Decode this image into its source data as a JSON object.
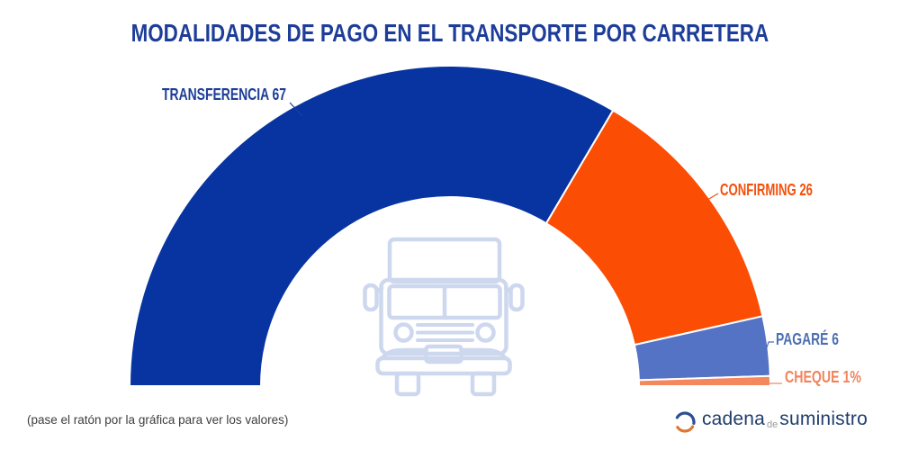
{
  "title": "MODALIDADES DE PAGO EN EL TRANSPORTE POR CARRETERA",
  "footer": {
    "hint": "(pase el ratón por la gráfica para ver los valores)"
  },
  "logo": {
    "word1": "cadena",
    "word2": "de",
    "word3": "suministro",
    "icon": "cadena-circular-arrows-icon",
    "icon_blue": "#2d4e92",
    "icon_orange": "#dd7731"
  },
  "colors": {
    "title": "#1d3d99",
    "background": "#ffffff",
    "truck_icon": "#cdd7ee",
    "slice_border": "#ffffff"
  },
  "chart_data": {
    "type": "pie",
    "subtype": "half-donut",
    "title": "MODALIDADES DE PAGO EN EL TRANSPORTE POR CARRETERA",
    "unit": "%",
    "start_angle_deg": 180,
    "end_angle_deg": 0,
    "inner_radius_ratio": 0.59,
    "legend": "none",
    "center_icon": "truck-front-icon",
    "categories": [
      "TRANSFERENCIA",
      "CONFIRMING",
      "PAGARÉ",
      "CHEQUE"
    ],
    "values": [
      67,
      26,
      6,
      1
    ],
    "series": [
      {
        "name": "TRANSFERENCIA",
        "value": 67,
        "label": "TRANSFERENCIA 67",
        "color": "#0834a1",
        "label_color": "#1d3d99"
      },
      {
        "name": "CONFIRMING",
        "value": 26,
        "label": "CONFIRMING 26",
        "color": "#fb4e04",
        "label_color": "#f4500a"
      },
      {
        "name": "PAGARÉ",
        "value": 6,
        "label": "PAGARÉ 6",
        "color": "#5573c5",
        "label_color": "#4c6fb3"
      },
      {
        "name": "CHEQUE",
        "value": 1,
        "label": "CHEQUE 1%",
        "color": "#f5875c",
        "label_color": "#f0855d"
      }
    ]
  }
}
